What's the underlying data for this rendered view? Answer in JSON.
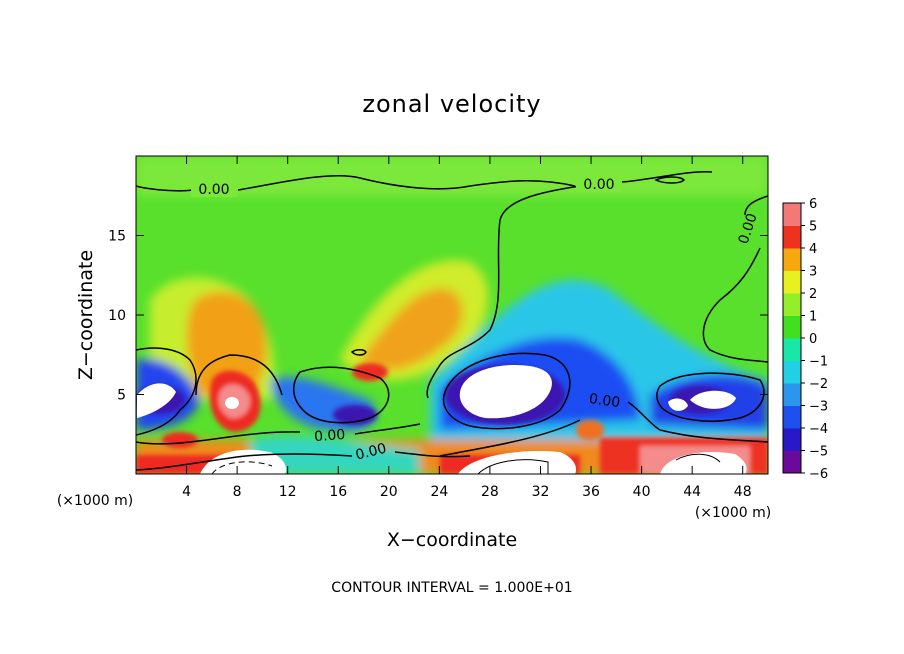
{
  "chart_data": {
    "type": "heatmap",
    "title": "zonal velocity",
    "xlabel": "X−coordinate",
    "ylabel": "Z−coordinate",
    "x_unit_left": "(×1000 m)",
    "x_unit_right": "(×1000 m)",
    "footer": "CONTOUR INTERVAL = 1.000E+01",
    "xlim": [
      0,
      50
    ],
    "ylim": [
      0,
      20
    ],
    "x_ticks": [
      "4",
      "8",
      "12",
      "16",
      "20",
      "24",
      "28",
      "32",
      "36",
      "40",
      "44",
      "48"
    ],
    "y_ticks": [
      "5",
      "10",
      "15"
    ],
    "contour_labels": [
      "0.00",
      "0.00",
      "0.00",
      "0.00",
      "0.00",
      "0.00"
    ],
    "colorbar": {
      "min": -6,
      "max": 6,
      "labels": [
        "6",
        "5",
        "4",
        "3",
        "2",
        "1",
        "0",
        "−1",
        "−2",
        "−3",
        "−4",
        "−5",
        "−6"
      ],
      "colors": [
        "#6a0a9a",
        "#2818c8",
        "#1e50f0",
        "#2a96ee",
        "#22d0e6",
        "#18e8a6",
        "#40e020",
        "#94ee2a",
        "#e8f020",
        "#f6a80e",
        "#ee3220",
        "#f47878"
      ]
    }
  }
}
